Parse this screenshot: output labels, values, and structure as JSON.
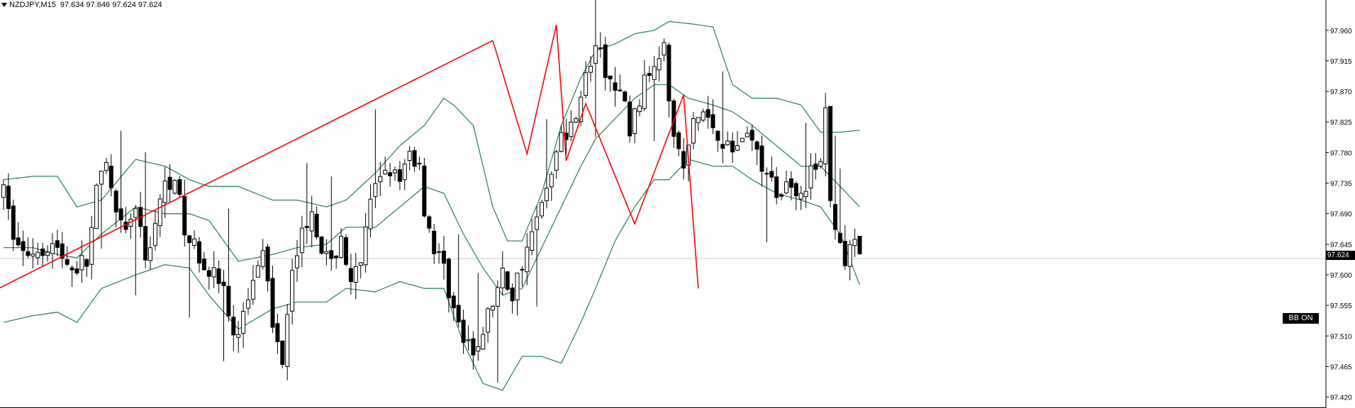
{
  "header": {
    "symbol": "NZDJPY,M15",
    "ohlc": "97.634 97.646 97.624 97.624"
  },
  "badge": {
    "label": "BB ON"
  },
  "current_price": {
    "label": "97.624",
    "value": 97.624
  },
  "colors": {
    "background": "#ffffff",
    "candle": "#000000",
    "bollinger": "#2e8b57",
    "trendline": "#ff0000",
    "axis": "#000000",
    "price_line": "#c8c8c8"
  },
  "chart_data": {
    "type": "candlestick",
    "title": "NZDJPY,M15",
    "y_ticks": [
      "97.960",
      "97.915",
      "97.870",
      "97.825",
      "97.780",
      "97.735",
      "97.690",
      "97.645",
      "97.600",
      "97.555",
      "97.510",
      "97.465",
      "97.420"
    ],
    "ylim": [
      97.405,
      97.99
    ],
    "grid": false,
    "candles_count": 176,
    "close_path": [
      [
        0,
        97.72
      ],
      [
        2,
        97.66
      ],
      [
        4,
        97.63
      ],
      [
        7,
        97.64
      ],
      [
        10,
        97.645
      ],
      [
        14,
        97.61
      ],
      [
        17,
        97.62
      ],
      [
        19,
        97.72
      ],
      [
        21,
        97.76
      ],
      [
        23,
        97.68
      ],
      [
        25,
        97.66
      ],
      [
        27,
        97.7
      ],
      [
        29,
        97.62
      ],
      [
        31,
        97.68
      ],
      [
        33,
        97.73
      ],
      [
        35,
        97.75
      ],
      [
        37,
        97.66
      ],
      [
        39,
        97.64
      ],
      [
        41,
        97.62
      ],
      [
        43,
        97.6
      ],
      [
        45,
        97.58
      ],
      [
        47,
        97.5
      ],
      [
        49,
        97.54
      ],
      [
        51,
        97.6
      ],
      [
        53,
        97.65
      ],
      [
        55,
        97.52
      ],
      [
        57,
        97.48
      ],
      [
        59,
        97.62
      ],
      [
        61,
        97.66
      ],
      [
        63,
        97.7
      ],
      [
        65,
        97.64
      ],
      [
        67,
        97.61
      ],
      [
        69,
        97.66
      ],
      [
        71,
        97.58
      ],
      [
        73,
        97.62
      ],
      [
        75,
        97.7
      ],
      [
        77,
        97.75
      ],
      [
        79,
        97.76
      ],
      [
        81,
        97.73
      ],
      [
        83,
        97.78
      ],
      [
        85,
        97.76
      ],
      [
        86,
        97.7
      ],
      [
        88,
        97.64
      ],
      [
        90,
        97.61
      ],
      [
        92,
        97.55
      ],
      [
        94,
        97.5
      ],
      [
        96,
        97.48
      ],
      [
        98,
        97.52
      ],
      [
        100,
        97.56
      ],
      [
        102,
        97.6
      ],
      [
        104,
        97.57
      ],
      [
        106,
        97.62
      ],
      [
        108,
        97.66
      ],
      [
        110,
        97.7
      ],
      [
        112,
        97.76
      ],
      [
        114,
        97.8
      ],
      [
        116,
        97.82
      ],
      [
        118,
        97.87
      ],
      [
        120,
        97.91
      ],
      [
        121,
        97.94
      ],
      [
        123,
        97.9
      ],
      [
        125,
        97.87
      ],
      [
        127,
        97.85
      ],
      [
        128,
        97.81
      ],
      [
        130,
        97.86
      ],
      [
        132,
        97.9
      ],
      [
        134,
        97.93
      ],
      [
        135,
        97.955
      ],
      [
        136,
        97.87
      ],
      [
        137,
        97.8
      ],
      [
        138,
        97.78
      ],
      [
        139,
        97.76
      ],
      [
        141,
        97.82
      ],
      [
        143,
        97.84
      ],
      [
        145,
        97.82
      ],
      [
        147,
        97.8
      ],
      [
        149,
        97.78
      ],
      [
        151,
        97.81
      ],
      [
        153,
        97.8
      ],
      [
        155,
        97.76
      ],
      [
        157,
        97.73
      ],
      [
        159,
        97.72
      ],
      [
        161,
        97.74
      ],
      [
        163,
        97.72
      ],
      [
        165,
        97.75
      ],
      [
        167,
        97.76
      ],
      [
        168,
        97.85
      ],
      [
        169,
        97.7
      ],
      [
        171,
        97.65
      ],
      [
        172,
        97.62
      ],
      [
        174,
        97.64
      ],
      [
        175,
        97.624
      ]
    ],
    "bollinger": {
      "upper": [
        [
          0,
          97.74
        ],
        [
          6,
          97.745
        ],
        [
          11,
          97.745
        ],
        [
          15,
          97.7
        ],
        [
          20,
          97.71
        ],
        [
          27,
          97.77
        ],
        [
          33,
          97.76
        ],
        [
          38,
          97.74
        ],
        [
          42,
          97.73
        ],
        [
          48,
          97.73
        ],
        [
          55,
          97.71
        ],
        [
          60,
          97.71
        ],
        [
          66,
          97.7
        ],
        [
          70,
          97.71
        ],
        [
          76,
          97.75
        ],
        [
          81,
          97.79
        ],
        [
          86,
          97.82
        ],
        [
          90,
          97.86
        ],
        [
          92,
          97.85
        ],
        [
          96,
          97.82
        ],
        [
          98,
          97.76
        ],
        [
          100,
          97.7
        ],
        [
          103,
          97.65
        ],
        [
          106,
          97.65
        ],
        [
          110,
          97.72
        ],
        [
          114,
          97.82
        ],
        [
          118,
          97.89
        ],
        [
          121,
          97.93
        ],
        [
          125,
          97.94
        ],
        [
          129,
          97.955
        ],
        [
          133,
          97.96
        ],
        [
          136,
          97.973
        ],
        [
          140,
          97.97
        ],
        [
          145,
          97.965
        ],
        [
          149,
          97.88
        ],
        [
          153,
          97.86
        ],
        [
          158,
          97.86
        ],
        [
          163,
          97.85
        ],
        [
          167,
          97.81
        ],
        [
          171,
          97.81
        ],
        [
          175,
          97.813
        ]
      ],
      "middle": [
        [
          0,
          97.64
        ],
        [
          6,
          97.64
        ],
        [
          11,
          97.63
        ],
        [
          15,
          97.625
        ],
        [
          20,
          97.66
        ],
        [
          27,
          97.7
        ],
        [
          33,
          97.69
        ],
        [
          38,
          97.69
        ],
        [
          42,
          97.68
        ],
        [
          48,
          97.62
        ],
        [
          55,
          97.63
        ],
        [
          60,
          97.64
        ],
        [
          66,
          97.645
        ],
        [
          70,
          97.67
        ],
        [
          76,
          97.67
        ],
        [
          81,
          97.7
        ],
        [
          86,
          97.73
        ],
        [
          90,
          97.72
        ],
        [
          94,
          97.66
        ],
        [
          98,
          97.61
        ],
        [
          102,
          97.57
        ],
        [
          106,
          97.58
        ],
        [
          110,
          97.64
        ],
        [
          114,
          97.7
        ],
        [
          118,
          97.76
        ],
        [
          121,
          97.8
        ],
        [
          125,
          97.83
        ],
        [
          129,
          97.86
        ],
        [
          133,
          97.88
        ],
        [
          136,
          97.88
        ],
        [
          140,
          97.86
        ],
        [
          145,
          97.85
        ],
        [
          149,
          97.84
        ],
        [
          153,
          97.82
        ],
        [
          158,
          97.79
        ],
        [
          163,
          97.76
        ],
        [
          167,
          97.76
        ],
        [
          171,
          97.73
        ],
        [
          175,
          97.7
        ]
      ],
      "lower": [
        [
          0,
          97.53
        ],
        [
          6,
          97.54
        ],
        [
          11,
          97.545
        ],
        [
          15,
          97.53
        ],
        [
          20,
          97.58
        ],
        [
          27,
          97.6
        ],
        [
          33,
          97.615
        ],
        [
          38,
          97.61
        ],
        [
          42,
          97.57
        ],
        [
          48,
          97.52
        ],
        [
          55,
          97.55
        ],
        [
          60,
          97.56
        ],
        [
          66,
          97.56
        ],
        [
          70,
          97.58
        ],
        [
          76,
          97.575
        ],
        [
          81,
          97.59
        ],
        [
          86,
          97.58
        ],
        [
          90,
          97.58
        ],
        [
          94,
          97.5
        ],
        [
          98,
          97.44
        ],
        [
          102,
          97.43
        ],
        [
          106,
          97.48
        ],
        [
          110,
          97.48
        ],
        [
          114,
          97.47
        ],
        [
          118,
          97.53
        ],
        [
          121,
          97.58
        ],
        [
          125,
          97.65
        ],
        [
          129,
          97.7
        ],
        [
          133,
          97.74
        ],
        [
          136,
          97.74
        ],
        [
          140,
          97.77
        ],
        [
          145,
          97.76
        ],
        [
          149,
          97.76
        ],
        [
          153,
          97.74
        ],
        [
          158,
          97.72
        ],
        [
          163,
          97.71
        ],
        [
          167,
          97.7
        ],
        [
          171,
          97.66
        ],
        [
          175,
          97.585
        ]
      ]
    },
    "trendline": [
      [
        -1,
        97.58
      ],
      [
        100,
        97.945
      ]
    ],
    "zigzag": [
      [
        100,
        97.945
      ],
      [
        107,
        97.778
      ],
      [
        113,
        97.968
      ],
      [
        115,
        97.768
      ],
      [
        119,
        97.852
      ],
      [
        129,
        97.675
      ],
      [
        139,
        97.865
      ],
      [
        142,
        97.58
      ]
    ]
  }
}
